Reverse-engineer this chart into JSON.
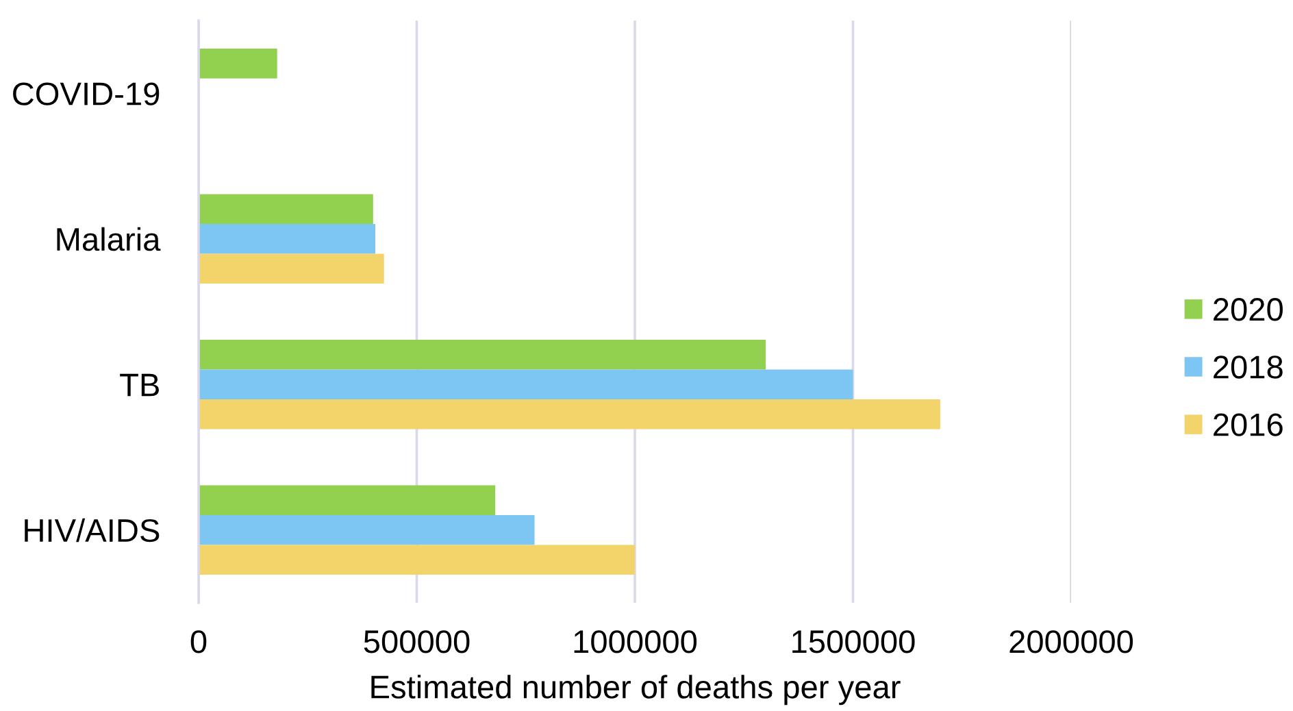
{
  "chart_data": {
    "type": "bar",
    "orientation": "horizontal",
    "xlabel": "Estimated number of deaths per year",
    "categories": [
      "COVID-19",
      "Malaria",
      "TB",
      "HIV/AIDS"
    ],
    "series": [
      {
        "name": "2020",
        "color": "#92d050",
        "values": [
          180000,
          400000,
          1300000,
          680000
        ]
      },
      {
        "name": "2018",
        "color": "#7dc5f2",
        "values": [
          null,
          405000,
          1500000,
          770000
        ]
      },
      {
        "name": "2016",
        "color": "#f3d46b",
        "values": [
          null,
          425000,
          1700000,
          1000000
        ]
      }
    ],
    "xlim": [
      0,
      2000000
    ],
    "xticks": [
      0,
      500000,
      1000000,
      1500000,
      2000000
    ],
    "grid": "x",
    "legend": "right"
  }
}
